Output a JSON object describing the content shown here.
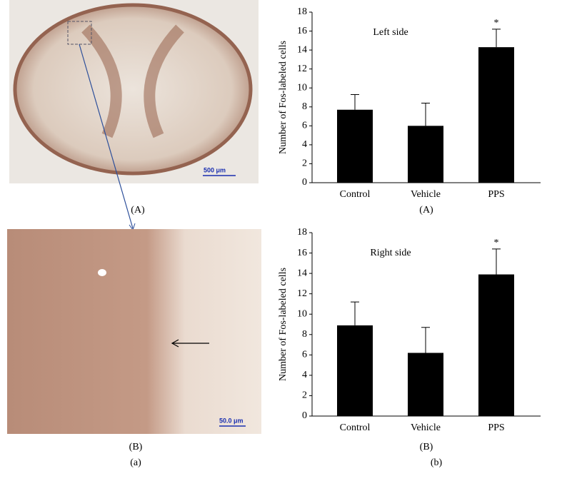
{
  "chart_data": [
    {
      "type": "bar",
      "title": "Left side",
      "y_label": "Number of Fos-labeled cells",
      "caption": "(A)",
      "categories": [
        "Control",
        "Vehicle",
        "PPS"
      ],
      "values": [
        7.7,
        6.0,
        14.3
      ],
      "errors": [
        1.6,
        2.4,
        1.9
      ],
      "color": "#000000",
      "ylim": [
        0,
        18
      ],
      "yticks": [
        0,
        2,
        4,
        6,
        8,
        10,
        12,
        14,
        16,
        18
      ],
      "annotations": [
        {
          "text": "*",
          "category": "PPS"
        }
      ]
    },
    {
      "type": "bar",
      "title": "Right side",
      "y_label": "Number of Fos-labeled cells",
      "caption": "(B)",
      "categories": [
        "Control",
        "Vehicle",
        "PPS"
      ],
      "values": [
        8.9,
        6.2,
        13.9
      ],
      "errors": [
        2.3,
        2.5,
        2.5
      ],
      "color": "#000000",
      "ylim": [
        0,
        18
      ],
      "yticks": [
        0,
        2,
        4,
        6,
        8,
        10,
        12,
        14,
        16,
        18
      ],
      "annotations": [
        {
          "text": "*",
          "category": "PPS"
        }
      ]
    }
  ],
  "images": [
    {
      "scale_label": "500 μm",
      "panel_label": "(A)"
    },
    {
      "scale_label": "50.0 μm",
      "panel_label": "(B)"
    }
  ],
  "column_labels": [
    "(a)",
    "(b)"
  ]
}
